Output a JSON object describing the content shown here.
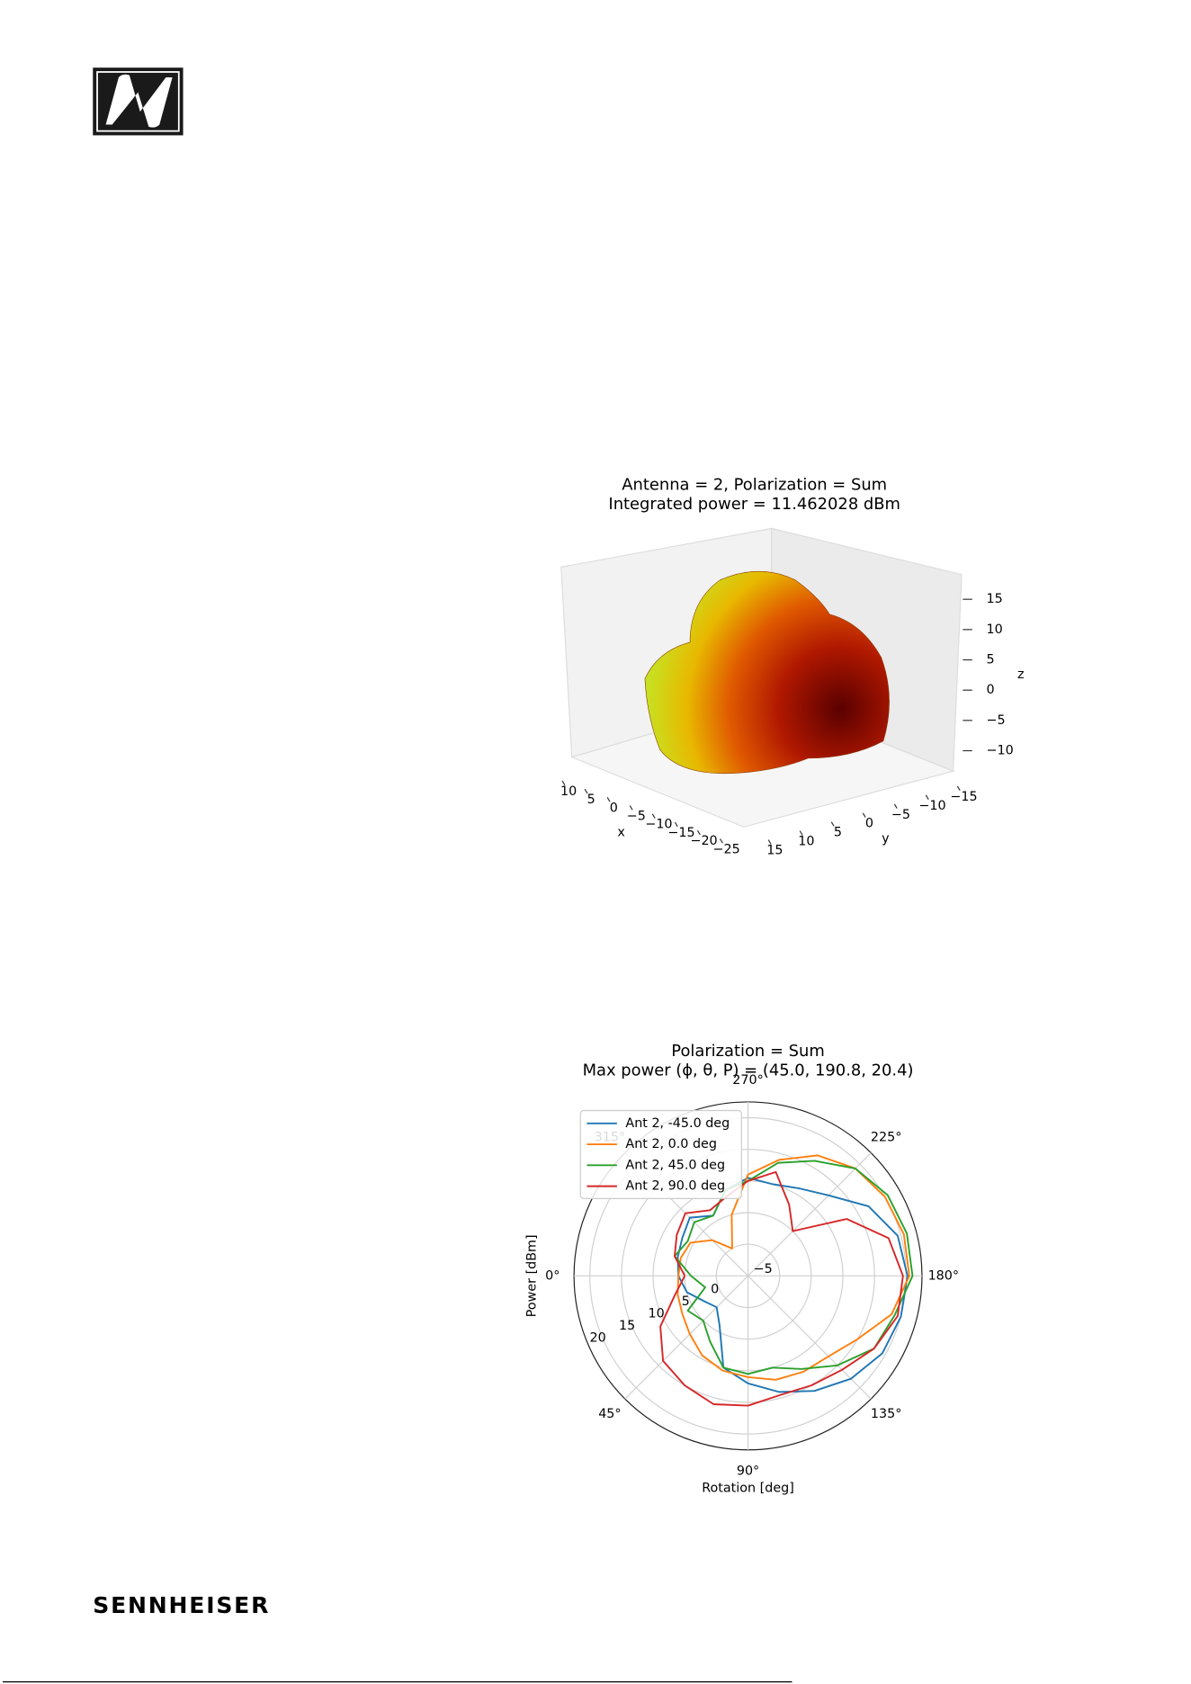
{
  "logo_text": "SENNHEISER",
  "chart_data": [
    {
      "type": "surface3d",
      "title": "Antenna = 2, Polarization = Sum",
      "subtitle": "Integrated power = 11.462028 dBm",
      "xlabel": "x",
      "ylabel": "y",
      "zlabel": "z",
      "xticks": [
        10,
        5,
        0,
        {
          "value": -5,
          "label": "−5"
        },
        {
          "value": -10,
          "label": "−10"
        },
        {
          "value": -15,
          "label": "−15"
        },
        {
          "value": -20,
          "label": "−20"
        },
        {
          "value": -25,
          "label": "−25"
        }
      ],
      "yticks": [
        15,
        10,
        5,
        0,
        {
          "value": -5,
          "label": "−5"
        },
        {
          "value": -10,
          "label": "−10"
        },
        {
          "value": -15,
          "label": "−15"
        }
      ],
      "zticks": [
        15,
        10,
        5,
        0,
        {
          "value": -5,
          "label": "−5"
        },
        {
          "value": -10,
          "label": "−10"
        }
      ]
    },
    {
      "type": "polar",
      "title": "Polarization = Sum",
      "subtitle": "Max power (ϕ, θ, P) = (45.0, 190.8, 20.4)",
      "xlabel": "Rotation [deg]",
      "ylabel": "Power [dBm]",
      "xlim": [
        0,
        360
      ],
      "xticks": [
        {
          "value": 0,
          "label": "0°"
        },
        {
          "value": 45,
          "label": "45°"
        },
        {
          "value": 90,
          "label": "90°"
        },
        {
          "value": 135,
          "label": "135°"
        },
        {
          "value": 180,
          "label": "180°"
        },
        {
          "value": 225,
          "label": "225°"
        },
        {
          "value": 270,
          "label": "270°"
        },
        {
          "value": 315,
          "label": "315°"
        }
      ],
      "ylim": [
        -5,
        22.5
      ],
      "yticks": [
        {
          "value": -5,
          "label": "−5"
        },
        0,
        5,
        10,
        15,
        20
      ],
      "grid": true,
      "legend": "upper left",
      "x": [
        0,
        15,
        30,
        45,
        60,
        75,
        90,
        105,
        120,
        135,
        150,
        165,
        180,
        195,
        210,
        225,
        240,
        255,
        270,
        285,
        300,
        315,
        330,
        345,
        360
      ],
      "series": [
        {
          "name": "Ant 2, -45.0 deg",
          "color": "#1f77b4",
          "values": [
            6,
            5,
            3,
            2,
            4,
            10,
            12,
            14,
            16,
            18,
            19.5,
            20,
            20.2,
            19.5,
            17,
            13,
            11,
            10,
            10.5,
            9,
            6,
            8,
            7,
            6.5,
            6
          ]
        },
        {
          "name": "Ant 2, 0.0 deg",
          "color": "#ff7f0e",
          "values": [
            6,
            6.5,
            7,
            8,
            9.5,
            10.5,
            11,
            12,
            12.5,
            13,
            15,
            18.5,
            20.5,
            20.5,
            20,
            19,
            17,
            14,
            11,
            5,
            0,
            3,
            5.5,
            6,
            6
          ]
        },
        {
          "name": "Ant 2, 45.0 deg",
          "color": "#2ca02c",
          "values": [
            4,
            2,
            6,
            5,
            7,
            10,
            10.5,
            10,
            12,
            15,
            18,
            19,
            21,
            21,
            20.5,
            19,
            16,
            13.5,
            10,
            9,
            6,
            7,
            6,
            7,
            4
          ]
        },
        {
          "name": "Ant 2, 90.0 deg",
          "color": "#d62728",
          "values": [
            5,
            7,
            11,
            14,
            15,
            16,
            15.5,
            14.5,
            15,
            16,
            18,
            19.5,
            19.5,
            18,
            13,
            5,
            8,
            12,
            10,
            8,
            7,
            9,
            8,
            7,
            5
          ]
        }
      ]
    }
  ]
}
